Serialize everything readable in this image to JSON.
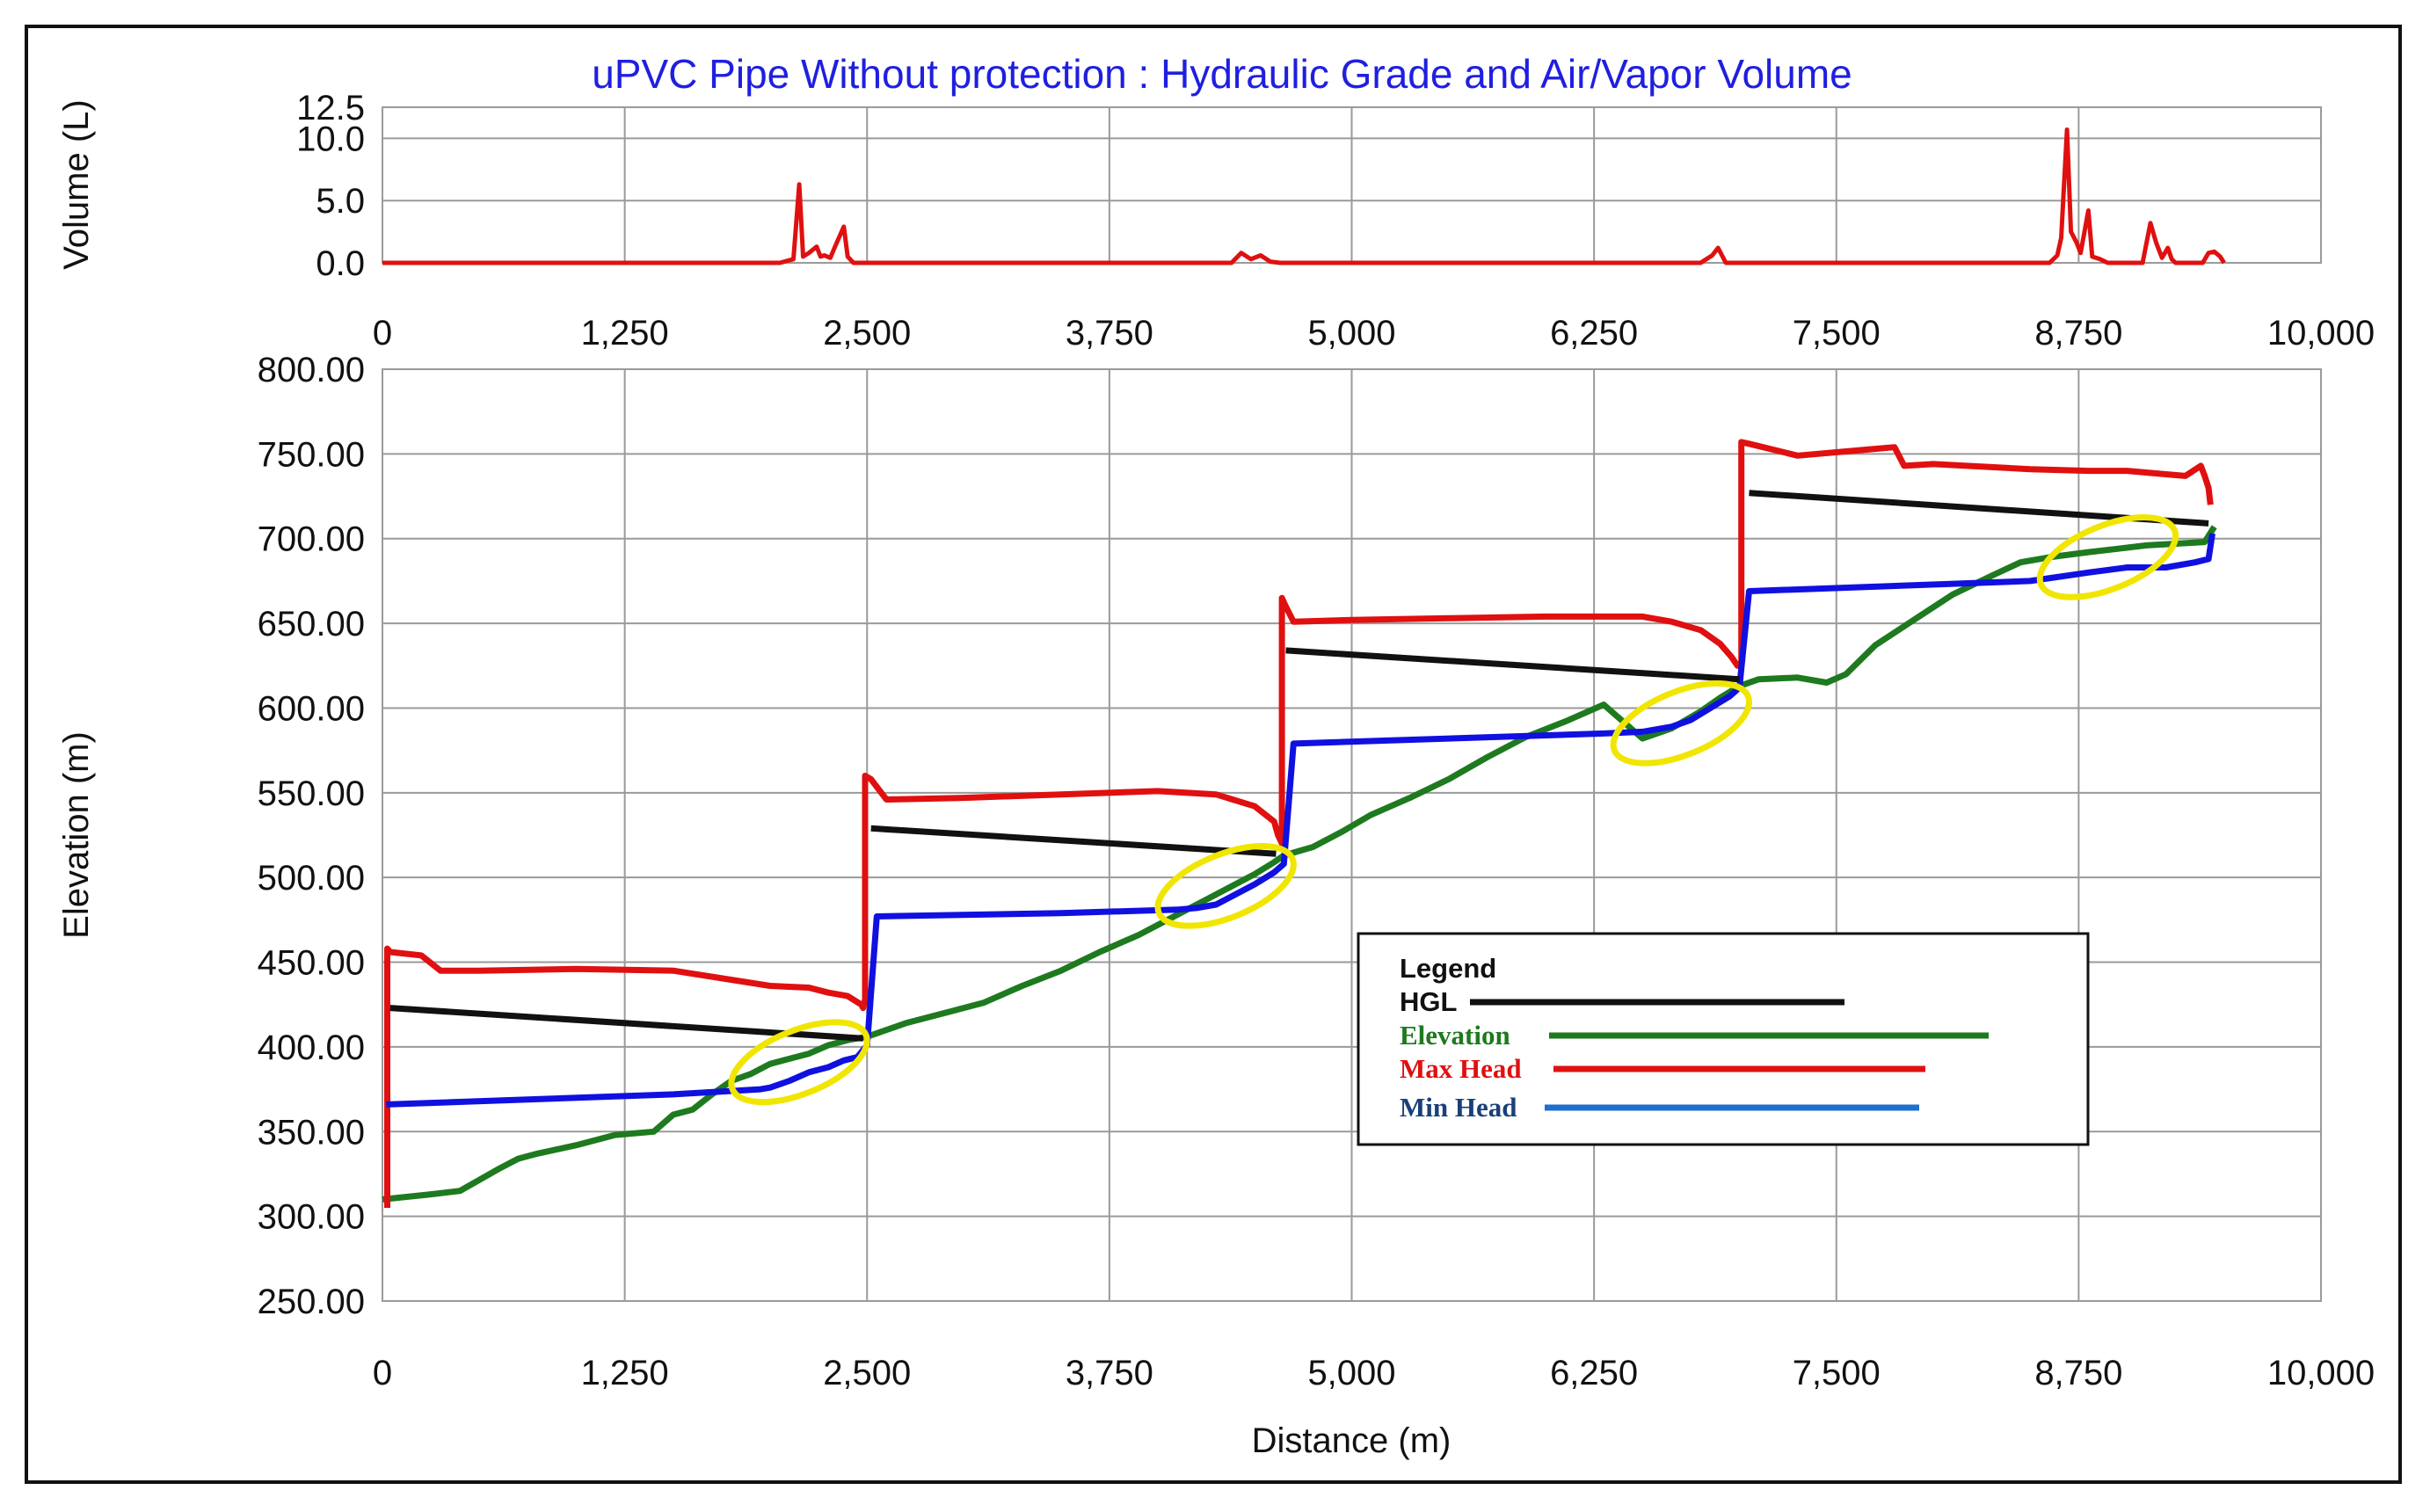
{
  "chart_data": [
    {
      "type": "line",
      "panel": "top",
      "title": "uPVC Pipe Without protection : Hydraulic Grade and Air/Vapor Volume",
      "xlabel": "",
      "ylabel": "Volume (L)",
      "xlim": [
        0,
        10000
      ],
      "ylim": [
        0,
        12.5
      ],
      "x_ticks": [
        "0",
        "1,250",
        "2,500",
        "3,750",
        "5,000",
        "6,250",
        "7,500",
        "8,750",
        "10,000"
      ],
      "x_tick_values": [
        0,
        1250,
        2500,
        3750,
        5000,
        6250,
        7500,
        8750,
        10000
      ],
      "y_ticks": [
        "0.0",
        "5.0",
        "10.0",
        "12.5"
      ],
      "y_tick_values": [
        0,
        5,
        10,
        12.5
      ],
      "grid": true,
      "series": [
        {
          "color": "#e01010",
          "x": [
            0,
            2050,
            2120,
            2150,
            2170,
            2200,
            2240,
            2260,
            2280,
            2310,
            2340,
            2380,
            2400,
            2430,
            2600,
            4380,
            4430,
            4480,
            4530,
            4580,
            4630,
            6800,
            6860,
            6890,
            6930,
            8600,
            8640,
            8660,
            8690,
            8710,
            8740,
            8760,
            8800,
            8820,
            8860,
            8900,
            9080,
            9120,
            9150,
            9180,
            9210,
            9230,
            9250,
            9390,
            9420,
            9450,
            9480,
            9500
          ],
          "y": [
            0,
            0,
            0.3,
            6.3,
            0.5,
            0.8,
            1.3,
            0.5,
            0.6,
            0.4,
            1.5,
            2.9,
            0.5,
            0,
            0,
            0,
            0.8,
            0.3,
            0.6,
            0.1,
            0,
            0,
            0.6,
            1.2,
            0,
            0,
            0.6,
            2,
            10.7,
            2.5,
            1.6,
            0.8,
            4.2,
            0.5,
            0.3,
            0,
            0,
            3.2,
            1.6,
            0.4,
            1.2,
            0.3,
            0,
            0,
            0.8,
            0.9,
            0.5,
            0
          ]
        }
      ]
    },
    {
      "type": "line",
      "panel": "bottom",
      "title": "",
      "xlabel": "Distance (m)",
      "ylabel": "Elevation (m)",
      "xlim": [
        0,
        10000
      ],
      "ylim": [
        250,
        800
      ],
      "x_ticks": [
        "0",
        "1,250",
        "2,500",
        "3,750",
        "5,000",
        "6,250",
        "7,500",
        "8,750",
        "10,000"
      ],
      "x_tick_values": [
        0,
        1250,
        2500,
        3750,
        5000,
        6250,
        7500,
        8750,
        10000
      ],
      "y_ticks": [
        "250.00",
        "300.00",
        "350.00",
        "400.00",
        "450.00",
        "500.00",
        "550.00",
        "600.00",
        "650.00",
        "700.00",
        "750.00",
        "800.00"
      ],
      "y_tick_values": [
        250,
        300,
        350,
        400,
        450,
        500,
        550,
        600,
        650,
        700,
        750,
        800
      ],
      "grid": true,
      "legend": {
        "title": "Legend",
        "placement": "center-right",
        "entries": [
          "HGL",
          "Elevation",
          "Max Head",
          "Min Head"
        ]
      },
      "highlights": [
        {
          "x": 2150,
          "y": 391,
          "color": "#f0e600"
        },
        {
          "x": 4350,
          "y": 495,
          "color": "#f0e600"
        },
        {
          "x": 6700,
          "y": 591,
          "color": "#f0e600"
        },
        {
          "x": 8900,
          "y": 689,
          "color": "#f0e600"
        }
      ],
      "series": [
        {
          "name": "HGL",
          "color": "#111111",
          "segments": [
            {
              "x": [
                40,
                2480
              ],
              "y": [
                423,
                405
              ]
            },
            {
              "x": [
                2520,
                4610
              ],
              "y": [
                529,
                514
              ]
            },
            {
              "x": [
                4660,
                7000
              ],
              "y": [
                634,
                617
              ]
            },
            {
              "x": [
                7050,
                9420
              ],
              "y": [
                727,
                709
              ]
            }
          ]
        },
        {
          "name": "Elevation",
          "color": "#1e7a1e",
          "x": [
            0,
            250,
            400,
            600,
            700,
            800,
            1000,
            1200,
            1400,
            1500,
            1600,
            1700,
            1800,
            1900,
            2000,
            2100,
            2200,
            2300,
            2400,
            2500,
            2700,
            2900,
            3100,
            3300,
            3500,
            3700,
            3900,
            4100,
            4300,
            4500,
            4600,
            4650,
            4800,
            4950,
            5100,
            5300,
            5500,
            5700,
            5900,
            6100,
            6300,
            6500,
            6650,
            6800,
            6900,
            7000,
            7100,
            7300,
            7450,
            7550,
            7700,
            7900,
            8100,
            8300,
            8450,
            8600,
            8800,
            8950,
            9100,
            9250,
            9400,
            9450
          ],
          "y": [
            310,
            313,
            315,
            328,
            334,
            337,
            342,
            348,
            350,
            360,
            363,
            372,
            380,
            384,
            390,
            393,
            396,
            401,
            404,
            406,
            414,
            420,
            426,
            436,
            445,
            456,
            466,
            478,
            490,
            502,
            509,
            513,
            518,
            527,
            537,
            547,
            558,
            571,
            583,
            592,
            602,
            582,
            588,
            598,
            606,
            613,
            617,
            618,
            615,
            620,
            637,
            652,
            667,
            678,
            686,
            689,
            692,
            694,
            696,
            697,
            698,
            707
          ]
        },
        {
          "name": "Max Head",
          "color": "#e01010",
          "x": [
            25,
            25,
            40,
            200,
            300,
            500,
            1000,
            1500,
            2000,
            2200,
            2300,
            2400,
            2470,
            2480,
            2490,
            2490,
            2520,
            2600,
            3000,
            3500,
            4000,
            4300,
            4500,
            4600,
            4620,
            4640,
            4640,
            4660,
            4700,
            5000,
            5500,
            6000,
            6500,
            6650,
            6800,
            6900,
            6960,
            6990,
            7000,
            7010,
            7010,
            7050,
            7300,
            7700,
            7800,
            7850,
            8000,
            8500,
            8800,
            9000,
            9200,
            9300,
            9380,
            9400,
            9420,
            9430
          ],
          "y": [
            305,
            458,
            456,
            454,
            445,
            445,
            446,
            445,
            436,
            435,
            432,
            430,
            425,
            423,
            428,
            560,
            558,
            546,
            547,
            549,
            551,
            549,
            542,
            533,
            525,
            520,
            665,
            660,
            651,
            652,
            653,
            654,
            654,
            651,
            646,
            638,
            630,
            625,
            625,
            625,
            757,
            756,
            749,
            753,
            754,
            743,
            744,
            741,
            740,
            740,
            738,
            737,
            743,
            737,
            730,
            720
          ]
        },
        {
          "name": "Min Head",
          "color": "#1010e0",
          "x": [
            20,
            1500,
            1950,
            2000,
            2100,
            2200,
            2300,
            2380,
            2450,
            2500,
            2550,
            3500,
            4100,
            4200,
            4300,
            4400,
            4500,
            4600,
            4650,
            4700,
            6300,
            6500,
            6650,
            6750,
            6850,
            6950,
            7000,
            7050,
            8500,
            8800,
            9000,
            9200,
            9350,
            9420,
            9440
          ],
          "y": [
            366,
            372,
            375,
            376,
            380,
            385,
            388,
            392,
            394,
            401,
            477,
            479,
            481,
            482,
            484,
            490,
            496,
            503,
            508,
            579,
            585,
            586,
            589,
            593,
            600,
            607,
            612,
            669,
            675,
            680,
            683,
            683,
            686,
            688,
            703
          ]
        }
      ]
    }
  ]
}
